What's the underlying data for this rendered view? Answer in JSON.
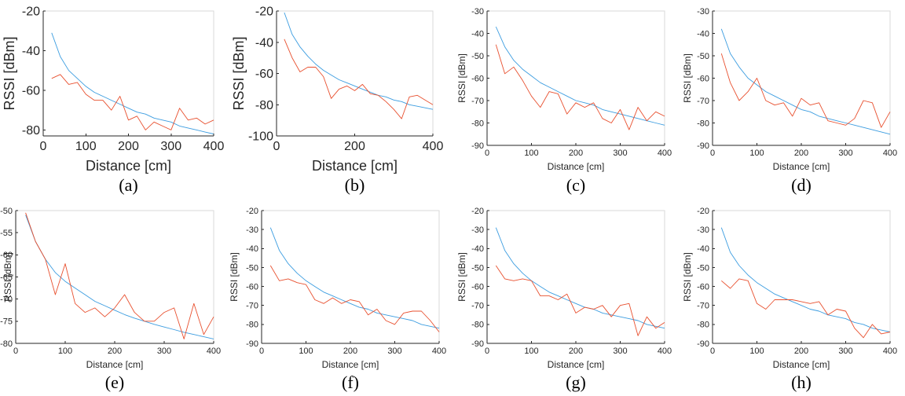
{
  "colors": {
    "model_line": "#3c9de0",
    "measured_line": "#e8502f",
    "axis": "#262626"
  },
  "chart_data": [
    {
      "type": "line",
      "caption": "(a)",
      "xlabel": "Distance [cm]",
      "ylabel": "RSSI [dBm]",
      "xlim": [
        0,
        400
      ],
      "ylim": [
        -83,
        -20
      ],
      "xticks": [
        0,
        100,
        200,
        300,
        400
      ],
      "xtick_labels": [
        "0",
        "100",
        "200",
        "300",
        "400"
      ],
      "yticks": [
        -80,
        -60,
        -40,
        -20
      ],
      "ytick_labels": [
        "-80",
        "-60",
        "-40",
        "-20"
      ],
      "x": [
        20,
        40,
        60,
        80,
        100,
        120,
        140,
        160,
        180,
        200,
        220,
        240,
        260,
        280,
        300,
        320,
        340,
        360,
        380,
        400
      ],
      "series": [
        {
          "values": [
            -31,
            -43,
            -50,
            -54,
            -58,
            -61,
            -63,
            -65,
            -67,
            -69,
            -71,
            -72,
            -74,
            -75,
            -76,
            -78,
            -79,
            -80,
            -81,
            -82
          ]
        },
        {
          "values": [
            -54,
            -52,
            -57,
            -56,
            -62,
            -65,
            -65,
            -70,
            -63,
            -75,
            -73,
            -80,
            -76,
            -78,
            -80,
            -69,
            -75,
            -74,
            -77,
            -75
          ]
        }
      ]
    },
    {
      "type": "line",
      "caption": "(b)",
      "xlabel": "Distance [cm]",
      "ylabel": "RSSI [dBm]",
      "xlim": [
        0,
        400
      ],
      "ylim": [
        -100,
        -20
      ],
      "xticks": [
        0,
        200,
        400
      ],
      "xtick_labels": [
        "0",
        "200",
        "400"
      ],
      "yticks": [
        -100,
        -80,
        -60,
        -40,
        -20
      ],
      "ytick_labels": [
        "-100",
        "-80",
        "-60",
        "-40",
        "-20"
      ],
      "x": [
        20,
        40,
        60,
        80,
        100,
        120,
        140,
        160,
        180,
        200,
        220,
        240,
        260,
        280,
        300,
        320,
        340,
        360,
        380,
        400
      ],
      "series": [
        {
          "values": [
            -21,
            -35,
            -43,
            -49,
            -54,
            -58,
            -61,
            -64,
            -66,
            -68,
            -70,
            -72,
            -74,
            -75,
            -77,
            -78,
            -80,
            -81,
            -82,
            -83
          ]
        },
        {
          "values": [
            -38,
            -50,
            -59,
            -56,
            -56,
            -62,
            -76,
            -70,
            -68,
            -71,
            -67,
            -73,
            -74,
            -78,
            -83,
            -89,
            -75,
            -74,
            -77,
            -80
          ]
        }
      ]
    },
    {
      "type": "line",
      "caption": "(c)",
      "xlabel": "Distance [cm]",
      "ylabel": "RSSI [dBm]",
      "xlim": [
        0,
        400
      ],
      "ylim": [
        -90,
        -30
      ],
      "xticks": [
        0,
        100,
        200,
        300,
        400
      ],
      "xtick_labels": [
        "0",
        "100",
        "200",
        "300",
        "400"
      ],
      "yticks": [
        -90,
        -80,
        -70,
        -60,
        -50,
        -40,
        -30
      ],
      "ytick_labels": [
        "-90",
        "-80",
        "-70",
        "-60",
        "-50",
        "-40",
        "-30"
      ],
      "x": [
        20,
        40,
        60,
        80,
        100,
        120,
        140,
        160,
        180,
        200,
        220,
        240,
        260,
        280,
        300,
        320,
        340,
        360,
        380,
        400
      ],
      "series": [
        {
          "values": [
            -37,
            -46,
            -52,
            -56,
            -59,
            -62,
            -64,
            -66,
            -68,
            -70,
            -71,
            -72,
            -74,
            -75,
            -76,
            -77,
            -78,
            -79,
            -80,
            -81
          ]
        },
        {
          "values": [
            -45,
            -58,
            -55,
            -61,
            -68,
            -73,
            -66,
            -67,
            -76,
            -71,
            -73,
            -71,
            -78,
            -80,
            -74,
            -83,
            -73,
            -79,
            -75,
            -77
          ]
        }
      ]
    },
    {
      "type": "line",
      "caption": "(d)",
      "xlabel": "Distance [cm]",
      "ylabel": "RSSI [dBm]",
      "xlim": [
        0,
        400
      ],
      "ylim": [
        -90,
        -30
      ],
      "xticks": [
        0,
        100,
        200,
        300,
        400
      ],
      "xtick_labels": [
        "0",
        "100",
        "200",
        "300",
        "400"
      ],
      "yticks": [
        -90,
        -80,
        -70,
        -60,
        -50,
        -40,
        -30
      ],
      "ytick_labels": [
        "-90",
        "-80",
        "-70",
        "-60",
        "-50",
        "-40",
        "-30"
      ],
      "x": [
        20,
        40,
        60,
        80,
        100,
        120,
        140,
        160,
        180,
        200,
        220,
        240,
        260,
        280,
        300,
        320,
        340,
        360,
        380,
        400
      ],
      "series": [
        {
          "values": [
            -38,
            -49,
            -55,
            -60,
            -63,
            -66,
            -68,
            -70,
            -72,
            -74,
            -75,
            -77,
            -78,
            -79,
            -80,
            -81,
            -82,
            -83,
            -84,
            -85
          ]
        },
        {
          "values": [
            -49,
            -62,
            -70,
            -66,
            -60,
            -70,
            -72,
            -71,
            -77,
            -69,
            -72,
            -71,
            -79,
            -80,
            -81,
            -78,
            -70,
            -71,
            -82,
            -75
          ]
        }
      ]
    },
    {
      "type": "line",
      "caption": "(e)",
      "xlabel": "Distance [cm]",
      "ylabel": "RSSI [dBm]",
      "xlim": [
        0,
        400
      ],
      "ylim": [
        -80,
        -50
      ],
      "xticks": [
        0,
        100,
        200,
        300,
        400
      ],
      "xtick_labels": [
        "0",
        "100",
        "200",
        "300",
        "400"
      ],
      "yticks": [
        -80,
        -75,
        -70,
        -65,
        -60,
        -55,
        -50
      ],
      "ytick_labels": [
        "-80",
        "-75",
        "-70",
        "-65",
        "-60",
        "-55",
        "-50"
      ],
      "x": [
        20,
        40,
        60,
        80,
        100,
        120,
        140,
        160,
        180,
        200,
        220,
        240,
        260,
        280,
        300,
        320,
        340,
        360,
        380,
        400
      ],
      "series": [
        {
          "values": [
            -51,
            -57,
            -61,
            -64,
            -66,
            -67.5,
            -69,
            -70.5,
            -71.5,
            -72.5,
            -73.5,
            -74.3,
            -75,
            -75.7,
            -76.3,
            -76.9,
            -77.5,
            -78,
            -78.5,
            -79
          ]
        },
        {
          "values": [
            -50.5,
            -57,
            -61,
            -69,
            -62,
            -71,
            -73,
            -72,
            -74,
            -72,
            -69,
            -73,
            -75,
            -75,
            -73,
            -72,
            -79,
            -71,
            -78,
            -74
          ]
        }
      ]
    },
    {
      "type": "line",
      "caption": "(f)",
      "xlabel": "Distance [cm]",
      "ylabel": "RSSI [dBm]",
      "xlim": [
        0,
        400
      ],
      "ylim": [
        -90,
        -20
      ],
      "xticks": [
        0,
        100,
        200,
        300,
        400
      ],
      "xtick_labels": [
        "0",
        "100",
        "200",
        "300",
        "400"
      ],
      "yticks": [
        -90,
        -80,
        -70,
        -60,
        -50,
        -40,
        -30,
        -20
      ],
      "ytick_labels": [
        "-90",
        "-80",
        "-70",
        "-60",
        "-50",
        "-40",
        "-30",
        "-20"
      ],
      "x": [
        20,
        40,
        60,
        80,
        100,
        120,
        140,
        160,
        180,
        200,
        220,
        240,
        260,
        280,
        300,
        320,
        340,
        360,
        380,
        400
      ],
      "series": [
        {
          "values": [
            -29,
            -41,
            -48,
            -53,
            -57,
            -60,
            -63,
            -65,
            -67,
            -69,
            -71,
            -72,
            -74,
            -75,
            -76,
            -77,
            -78,
            -80,
            -81,
            -82
          ]
        },
        {
          "values": [
            -49,
            -57,
            -56,
            -58,
            -59,
            -67,
            -69,
            -66,
            -69,
            -67,
            -68,
            -75,
            -72,
            -78,
            -80,
            -74,
            -73,
            -73,
            -78,
            -84
          ]
        }
      ]
    },
    {
      "type": "line",
      "caption": "(g)",
      "xlabel": "Distance [cm]",
      "ylabel": "RSSI [dBm]",
      "xlim": [
        0,
        400
      ],
      "ylim": [
        -90,
        -20
      ],
      "xticks": [
        0,
        100,
        200,
        300,
        400
      ],
      "xtick_labels": [
        "0",
        "100",
        "200",
        "300",
        "400"
      ],
      "yticks": [
        -90,
        -80,
        -70,
        -60,
        -50,
        -40,
        -30,
        -20
      ],
      "ytick_labels": [
        "-90",
        "-80",
        "-70",
        "-60",
        "-50",
        "-40",
        "-30",
        "-20"
      ],
      "x": [
        20,
        40,
        60,
        80,
        100,
        120,
        140,
        160,
        180,
        200,
        220,
        240,
        260,
        280,
        300,
        320,
        340,
        360,
        380,
        400
      ],
      "series": [
        {
          "values": [
            -29,
            -41,
            -48,
            -53,
            -57,
            -60,
            -63,
            -65,
            -67,
            -69,
            -71,
            -72,
            -74,
            -75,
            -76,
            -77,
            -78,
            -80,
            -81,
            -82
          ]
        },
        {
          "values": [
            -49,
            -56,
            -57,
            -56,
            -57,
            -65,
            -65,
            -67,
            -64,
            -74,
            -71,
            -72,
            -70,
            -76,
            -70,
            -69,
            -86,
            -76,
            -82,
            -79
          ]
        }
      ]
    },
    {
      "type": "line",
      "caption": "(h)",
      "xlabel": "Distance [cm]",
      "ylabel": "RSSI [dBm]",
      "xlim": [
        0,
        400
      ],
      "ylim": [
        -90,
        -20
      ],
      "xticks": [
        0,
        100,
        200,
        300,
        400
      ],
      "xtick_labels": [
        "0",
        "100",
        "200",
        "300",
        "400"
      ],
      "yticks": [
        -90,
        -80,
        -70,
        -60,
        -50,
        -40,
        -30,
        -20
      ],
      "ytick_labels": [
        "-90",
        "-80",
        "-70",
        "-60",
        "-50",
        "-40",
        "-30",
        "-20"
      ],
      "x": [
        20,
        40,
        60,
        80,
        100,
        120,
        140,
        160,
        180,
        200,
        220,
        240,
        260,
        280,
        300,
        320,
        340,
        360,
        380,
        400
      ],
      "series": [
        {
          "values": [
            -29,
            -42,
            -49,
            -54,
            -58,
            -61,
            -64,
            -66,
            -68,
            -70,
            -72,
            -73,
            -75,
            -76,
            -77,
            -79,
            -80,
            -82,
            -83,
            -84
          ]
        },
        {
          "values": [
            -57,
            -61,
            -56,
            -57,
            -69,
            -72,
            -67,
            -67,
            -67,
            -68,
            -69,
            -68,
            -75,
            -72,
            -73,
            -82,
            -87,
            -80,
            -85,
            -84
          ]
        }
      ]
    }
  ]
}
